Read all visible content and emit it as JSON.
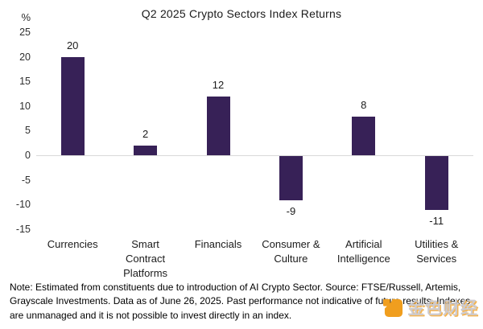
{
  "chart": {
    "title": "Q2 2025 Crypto Sectors Index Returns",
    "y_axis": {
      "unit": "%",
      "ticks": [
        25,
        20,
        15,
        10,
        5,
        0,
        -5,
        -10,
        -15
      ]
    }
  },
  "chart_data": {
    "type": "bar",
    "categories": [
      "Currencies",
      "Smart Contract Platforms",
      "Financials",
      "Consumer & Culture",
      "Artificial Intelligence",
      "Utilities & Services"
    ],
    "values": [
      20,
      2,
      12,
      -9,
      8,
      -11
    ],
    "title": "Q2 2025 Crypto Sectors Index Returns",
    "xlabel": "",
    "ylabel": "%",
    "ylim": [
      -15,
      25
    ],
    "bar_color": "#372157",
    "grid": "zero-baseline-only",
    "legend": "none",
    "data_labels": "outside-end"
  },
  "note": {
    "text": "Note: Estimated from constituents due to introduction of AI Crypto Sector. Source: FTSE/Russell, Artemis, Grayscale Investments. Data as of June 26, 2025. Past performance not indicative of future results. Indexes are unmanaged and it is not possible to invest directly in an index."
  },
  "watermark": {
    "text": "金色财经",
    "logo": "jinse-finance-logo",
    "accent_color": "#F09E1E"
  }
}
